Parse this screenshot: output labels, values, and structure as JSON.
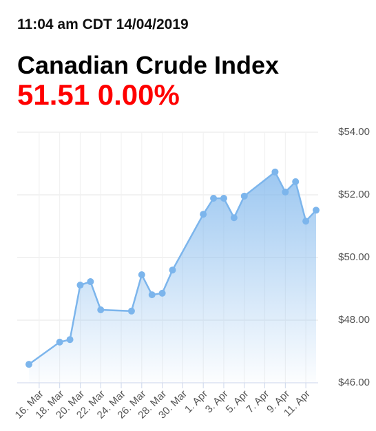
{
  "timestamp": "11:04 am CDT 14/04/2019",
  "chart_data": {
    "type": "area",
    "title": "Canadian Crude Index",
    "subtitle": "51.51 0.00%",
    "x": [
      "15. Mar",
      "18. Mar",
      "19. Mar",
      "20. Mar",
      "21. Mar",
      "22. Mar",
      "25. Mar",
      "26. Mar",
      "27. Mar",
      "28. Mar",
      "29. Mar",
      "1. Apr",
      "2. Apr",
      "3. Apr",
      "4. Apr",
      "5. Apr",
      "8. Apr",
      "9. Apr",
      "10. Apr",
      "11. Apr",
      "12. Apr"
    ],
    "values": [
      46.59,
      47.3,
      47.38,
      49.12,
      49.23,
      48.33,
      48.29,
      49.45,
      48.81,
      48.86,
      49.6,
      51.38,
      51.89,
      51.89,
      51.27,
      51.96,
      52.73,
      52.09,
      52.42,
      51.16,
      51.51
    ],
    "color": "#7cb5ec",
    "xlim": [
      "15. Mar",
      "12. Apr"
    ],
    "xticks": [
      "16. Mar",
      "18. Mar",
      "20. Mar",
      "22. Mar",
      "24. Mar",
      "26. Mar",
      "28. Mar",
      "30. Mar",
      "1. Apr",
      "3. Apr",
      "5. Apr",
      "7. Apr",
      "9. Apr",
      "11. Apr"
    ],
    "ylim": [
      46,
      54
    ],
    "yticks": [
      {
        "value": 46,
        "label": "$46.00"
      },
      {
        "value": 48,
        "label": "$48.00"
      },
      {
        "value": 50,
        "label": "$50.00"
      },
      {
        "value": 52,
        "label": "$52.00"
      },
      {
        "value": 54,
        "label": "$54.00"
      }
    ],
    "grid": true
  }
}
